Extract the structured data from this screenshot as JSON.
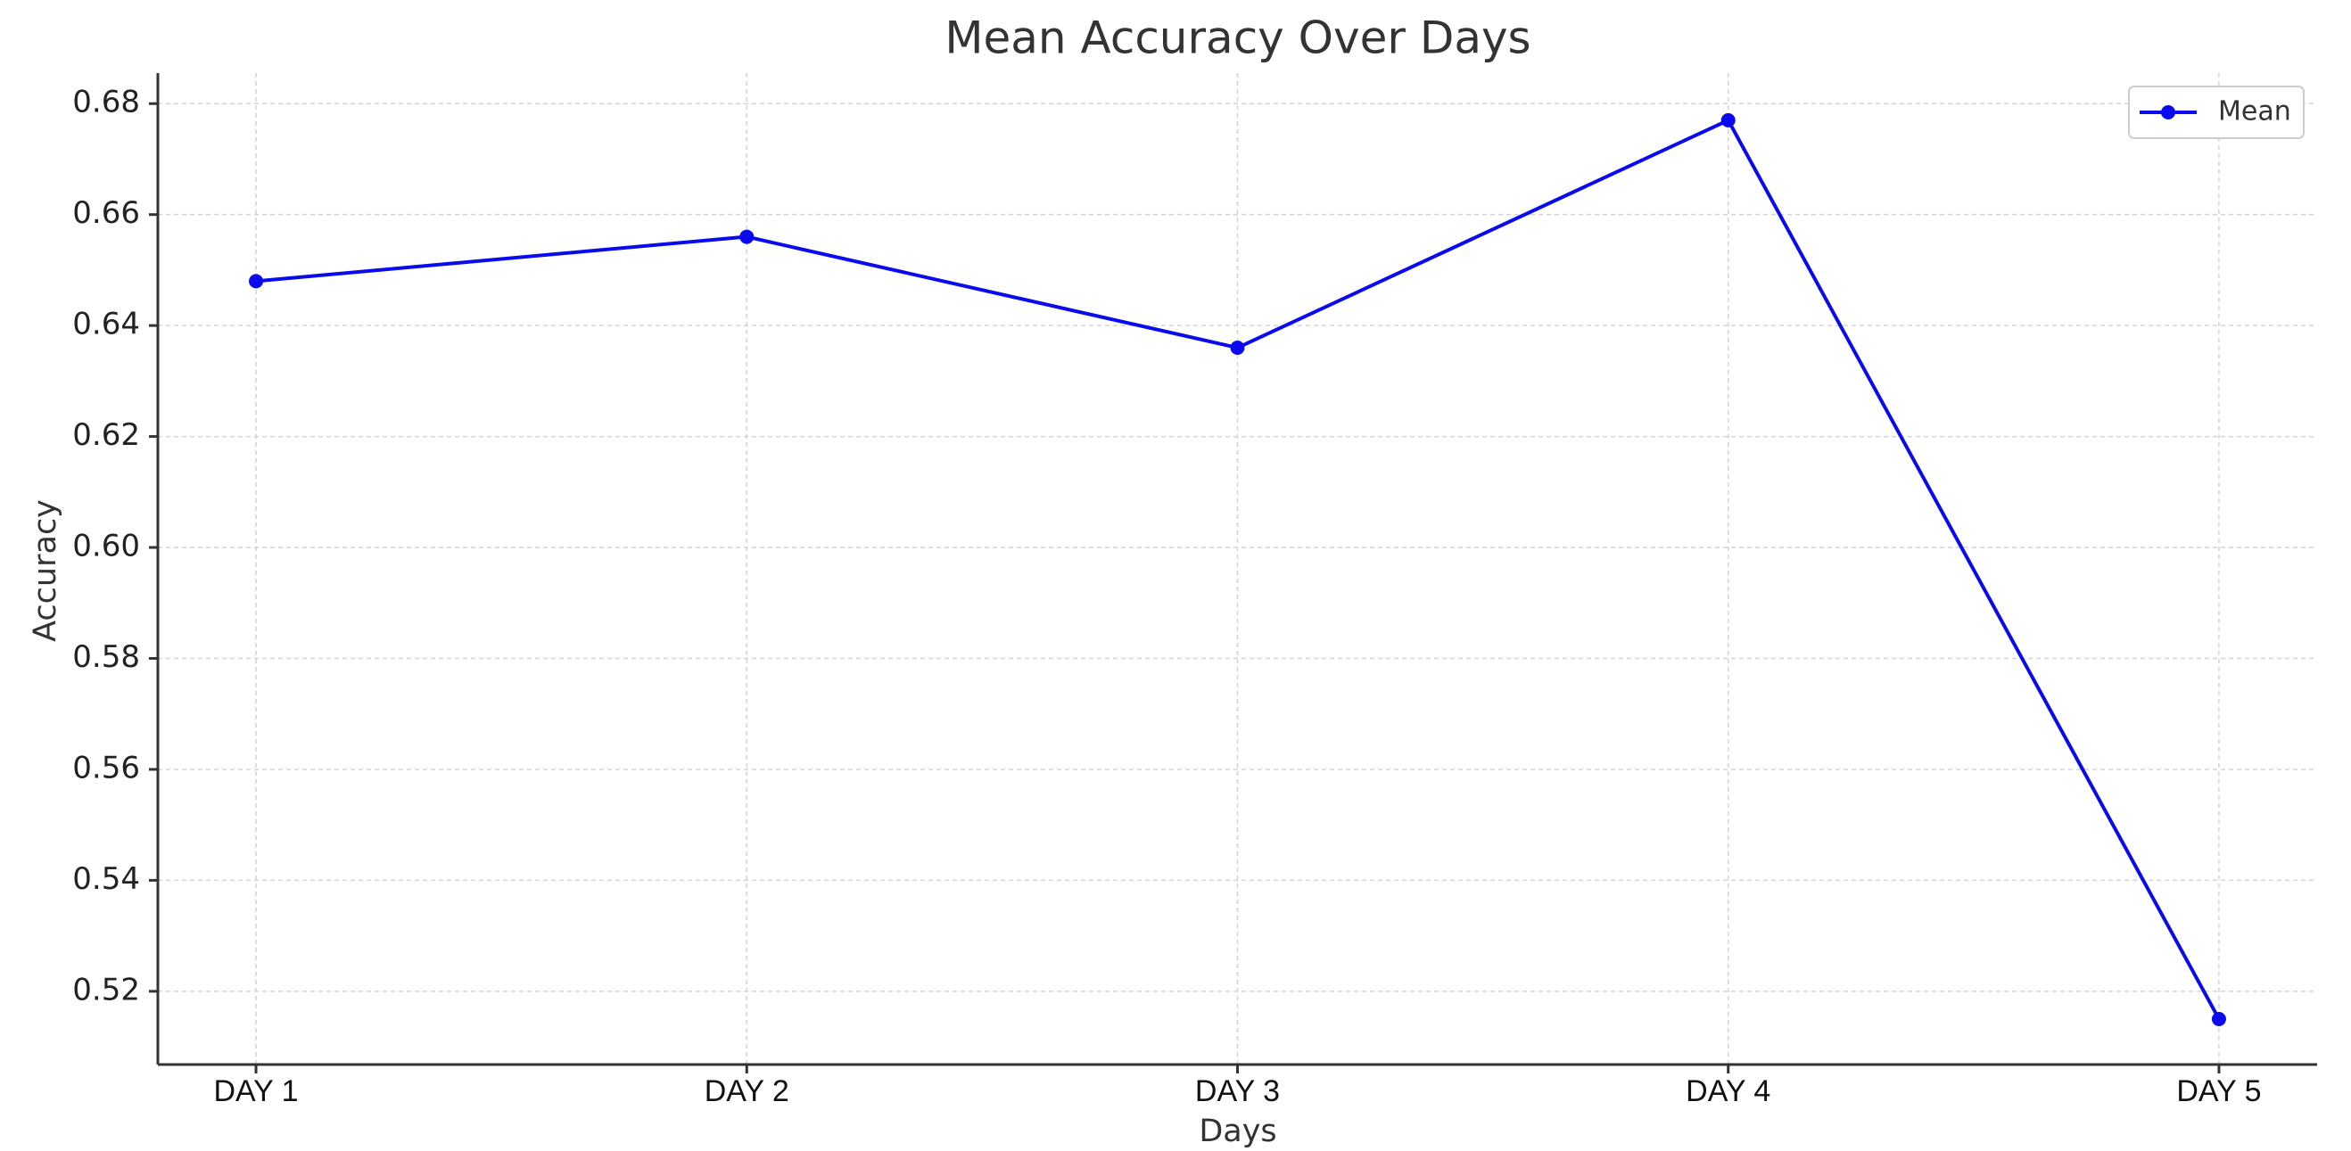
{
  "chart_data": {
    "type": "line",
    "title": "Mean Accuracy Over Days",
    "x_label": "Days",
    "y_label": "Accuracy",
    "categories": [
      "DAY 1",
      "DAY 2",
      "DAY 3",
      "DAY 4",
      "DAY 5"
    ],
    "series": [
      {
        "name": "Mean",
        "color": "#0a0aee",
        "values": [
          0.648,
          0.656,
          0.636,
          0.677,
          0.515
        ]
      }
    ],
    "ylim": [
      0.5068,
      0.6855
    ],
    "yticks": [
      0.52,
      0.54,
      0.56,
      0.58,
      {
        "value": 0.6,
        "label": "0.60"
      },
      0.62,
      0.64,
      0.66,
      0.68
    ],
    "grid": true,
    "legend": "upper right"
  }
}
